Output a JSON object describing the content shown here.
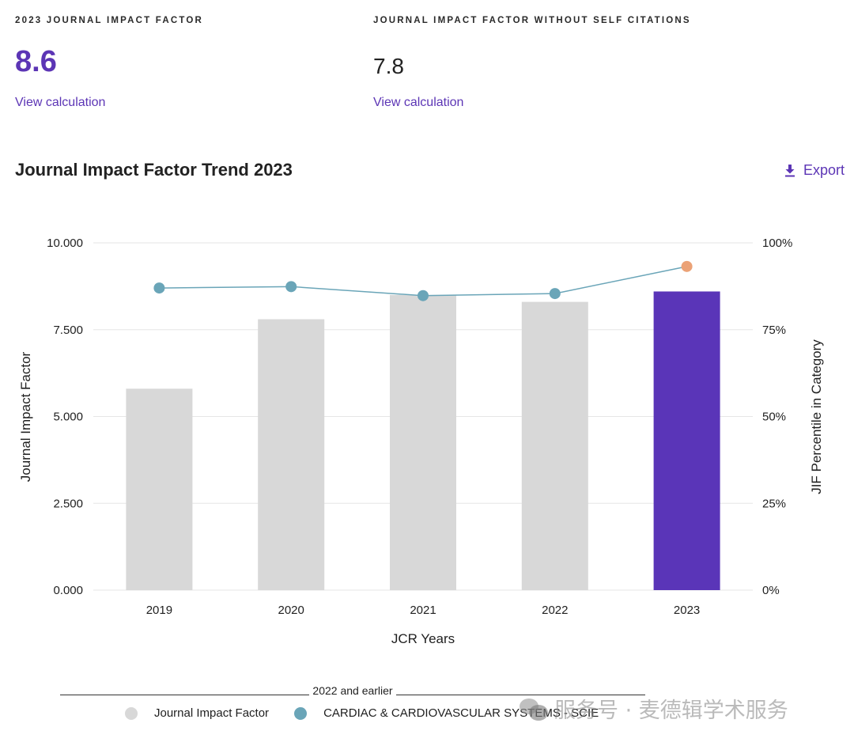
{
  "metrics": [
    {
      "label": "2023 JOURNAL IMPACT FACTOR",
      "value": "8.6",
      "link": "View calculation"
    },
    {
      "label": "JOURNAL IMPACT FACTOR WITHOUT SELF CITATIONS",
      "value": "7.8",
      "link": "View calculation"
    }
  ],
  "section": {
    "title": "Journal Impact Factor Trend 2023",
    "export_label": "Export",
    "export_icon": "download-icon"
  },
  "colors": {
    "accent": "#5c35b5",
    "bar_past": "#d8d8d8",
    "bar_current": "#5a35b8",
    "line": "#6aa5b8",
    "dot_current": "#eba276",
    "grid": "#e6e6e6"
  },
  "chart_data": {
    "type": "bar",
    "title": "Journal Impact Factor Trend 2023",
    "categories": [
      "2019",
      "2020",
      "2021",
      "2022",
      "2023"
    ],
    "xlabel": "JCR Years",
    "ylabel": "Journal Impact Factor",
    "y2label": "JIF Percentile in Category",
    "ylim": [
      0,
      10
    ],
    "y2lim": [
      0,
      100
    ],
    "yticks": [
      "0.000",
      "2.500",
      "5.000",
      "7.500",
      "10.000"
    ],
    "y2ticks": [
      "0%",
      "25%",
      "50%",
      "75%",
      "100%"
    ],
    "grid": true,
    "series": [
      {
        "name": "Journal Impact Factor",
        "type": "bar",
        "axis": "left",
        "values": [
          5.8,
          7.8,
          8.5,
          8.3,
          8.6
        ]
      },
      {
        "name": "CARDIAC & CARDIOVASCULAR SYSTEMS - SCIE",
        "type": "line",
        "axis": "right",
        "values": [
          87.0,
          87.4,
          84.8,
          85.4,
          93.2
        ]
      }
    ],
    "legend_placement": "bottom",
    "legend_group_label": "2022 and earlier"
  },
  "legend": {
    "group_label": "2022 and earlier",
    "items": [
      "Journal Impact Factor",
      "CARDIAC & CARDIOVASCULAR SYSTEMS - SCIE"
    ]
  },
  "watermark": "服务号 · 麦德辑学术服务"
}
